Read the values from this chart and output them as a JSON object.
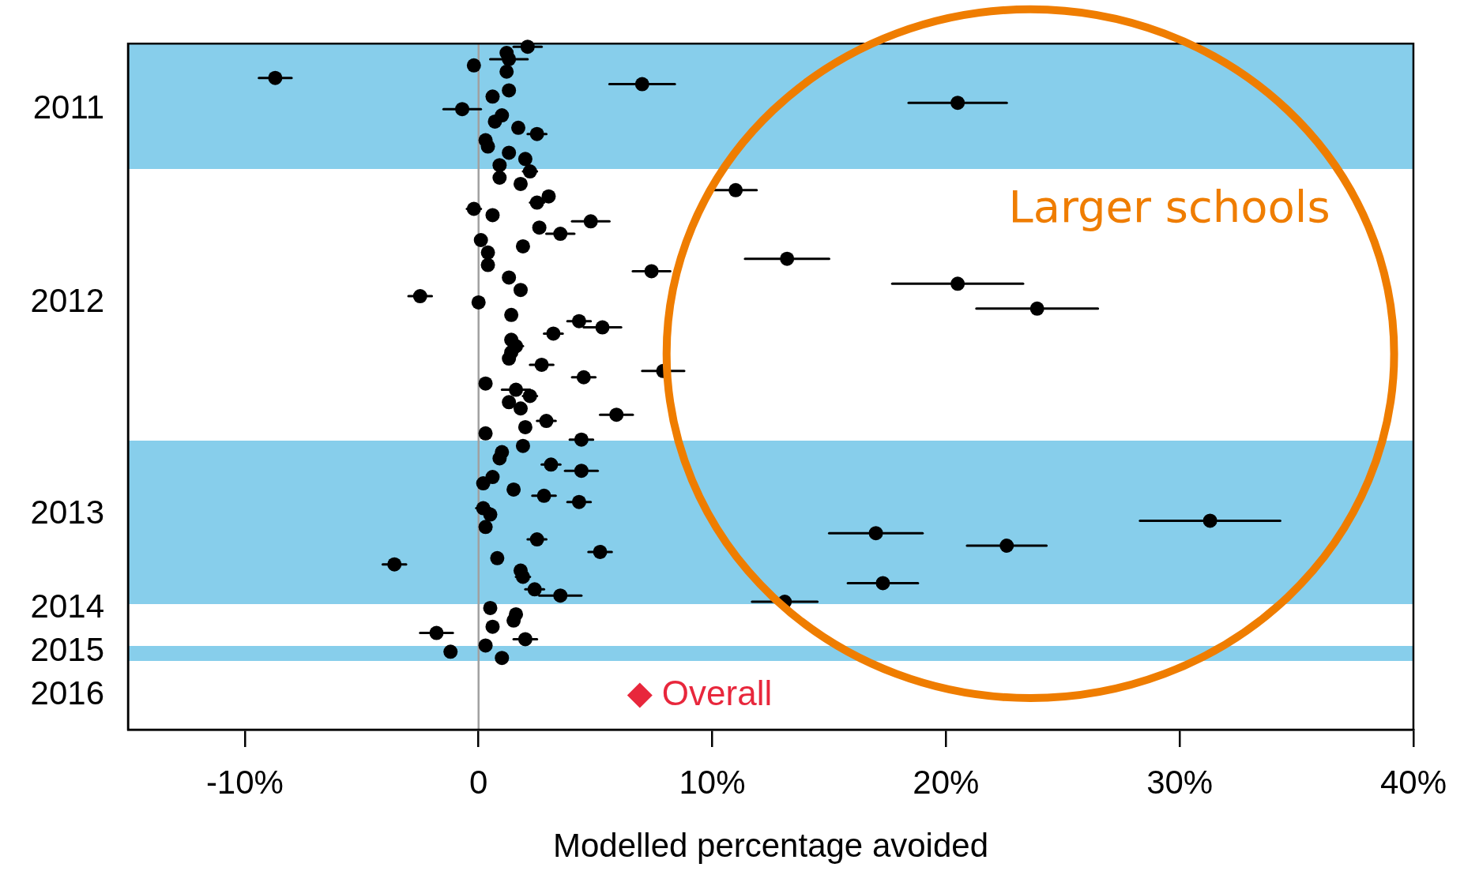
{
  "chart_data": {
    "type": "scatter",
    "orientation": "horizontal",
    "xlabel": "Modelled percentage avoided",
    "annotations": [
      "Larger schools"
    ],
    "categories": [
      null,
      null,
      null,
      null,
      null,
      null,
      null,
      null,
      null,
      null,
      "2011",
      null,
      null,
      null,
      null,
      null,
      null,
      null,
      null,
      null,
      null,
      null,
      null,
      null,
      null,
      null,
      null,
      null,
      null,
      null,
      null,
      null,
      null,
      null,
      null,
      null,
      null,
      null,
      null,
      null,
      null,
      "2012",
      null,
      null,
      null,
      null,
      null,
      null,
      null,
      null,
      null,
      null,
      null,
      null,
      null,
      null,
      null,
      null,
      null,
      null,
      null,
      null,
      null,
      null,
      null,
      null,
      null,
      null,
      null,
      null,
      null,
      null,
      null,
      null,
      null,
      "2013",
      null,
      null,
      null,
      null,
      null,
      null,
      null,
      null,
      null,
      null,
      null,
      null,
      null,
      null,
      "2014",
      null,
      null,
      null,
      null,
      null,
      null,
      "2015",
      null,
      null,
      null,
      null,
      null,
      null,
      "2016",
      null,
      null,
      null,
      null,
      null
    ],
    "xlim": [
      -15,
      40
    ],
    "xticks": [
      {
        "value": -10,
        "label": "-10%"
      },
      0,
      {
        "value": 10,
        "label": "10%"
      },
      {
        "value": 20,
        "label": "20%"
      },
      {
        "value": 30,
        "label": "30%"
      },
      {
        "value": 40,
        "label": "40%"
      }
    ],
    "grid": false,
    "legend": false,
    "marker": "circle",
    "ref_lines": [
      {
        "axis": "x",
        "value": 0,
        "color": "#a0a0a0"
      }
    ],
    "series": [
      {
        "color": "#000000",
        "values": [
          2.1,
          1.2,
          1.3,
          -0.2,
          1.2,
          -8.7,
          7.0,
          1.3,
          0.6,
          20.5,
          -0.7,
          1.0,
          0.7,
          1.7,
          2.5,
          0.3,
          0.4,
          1.3,
          2.0,
          0.9,
          2.2,
          0.9,
          1.8,
          11.0,
          3.0,
          2.5,
          -0.2,
          0.6,
          4.8,
          2.6,
          3.5,
          0.1,
          1.9,
          0.4,
          13.2,
          0.4,
          7.4,
          1.3,
          20.5,
          1.8,
          -2.5,
          0.0,
          23.9,
          1.4,
          4.3,
          5.3,
          3.2,
          1.4,
          1.6,
          1.4,
          1.3,
          2.7,
          7.9,
          4.5,
          0.3,
          1.6,
          2.2,
          1.3,
          1.8,
          5.9,
          2.9,
          2.0,
          0.3,
          4.4,
          1.9,
          1.0,
          0.9,
          3.1,
          4.4,
          0.6,
          0.2,
          1.5,
          2.8,
          4.3,
          0.2,
          0.5,
          31.3,
          0.3,
          17.0,
          2.5,
          22.6,
          5.2,
          0.8,
          -3.6,
          1.8,
          1.9,
          17.3,
          2.4,
          3.5,
          13.1,
          0.5,
          1.6,
          1.5,
          0.6,
          -1.8,
          2.0,
          0.3,
          -1.2,
          1.0,
          null,
          null,
          null,
          null,
          null,
          null,
          null,
          null,
          null,
          null,
          null
        ],
        "errors": [
          0.6,
          null,
          0.8,
          null,
          null,
          0.7,
          1.4,
          null,
          null,
          2.1,
          0.8,
          null,
          null,
          null,
          0.4,
          null,
          null,
          null,
          null,
          null,
          0.3,
          null,
          null,
          0.9,
          null,
          0.3,
          0.3,
          null,
          0.8,
          null,
          0.6,
          null,
          null,
          null,
          1.8,
          null,
          0.8,
          null,
          2.8,
          null,
          0.5,
          null,
          2.6,
          null,
          0.5,
          0.8,
          0.4,
          null,
          0.3,
          null,
          null,
          0.5,
          0.9,
          0.5,
          null,
          0.6,
          0.3,
          null,
          null,
          0.7,
          0.4,
          null,
          null,
          0.5,
          null,
          null,
          null,
          0.4,
          0.7,
          null,
          null,
          null,
          0.5,
          0.5,
          0.3,
          null,
          3.0,
          null,
          2.0,
          0.4,
          1.7,
          0.5,
          null,
          0.5,
          null,
          0.3,
          1.5,
          0.4,
          0.9,
          1.4,
          null,
          null,
          null,
          null,
          0.7,
          0.5,
          null,
          null,
          null,
          null,
          null,
          null,
          null,
          null,
          null,
          null,
          null,
          null,
          null,
          null
        ]
      },
      {
        "name": "Overall",
        "color": "#e8273c",
        "marker": "diamond",
        "values": [
          null,
          null,
          null,
          null,
          null,
          null,
          null,
          null,
          null,
          null,
          null,
          null,
          null,
          null,
          null,
          null,
          null,
          null,
          null,
          null,
          null,
          null,
          null,
          null,
          null,
          null,
          null,
          null,
          null,
          null,
          null,
          null,
          null,
          null,
          null,
          null,
          null,
          null,
          null,
          null,
          null,
          null,
          null,
          null,
          null,
          null,
          null,
          null,
          null,
          null,
          null,
          null,
          null,
          null,
          null,
          null,
          null,
          null,
          null,
          null,
          null,
          null,
          null,
          null,
          null,
          null,
          null,
          null,
          null,
          null,
          null,
          null,
          null,
          null,
          null,
          null,
          null,
          null,
          null,
          null,
          null,
          null,
          null,
          null,
          null,
          null,
          null,
          null,
          null,
          null,
          null,
          null,
          null,
          null,
          null,
          null,
          null,
          null,
          null,
          null,
          null,
          null,
          null,
          null,
          6.9,
          null,
          null,
          null,
          null,
          null
        ]
      }
    ]
  }
}
